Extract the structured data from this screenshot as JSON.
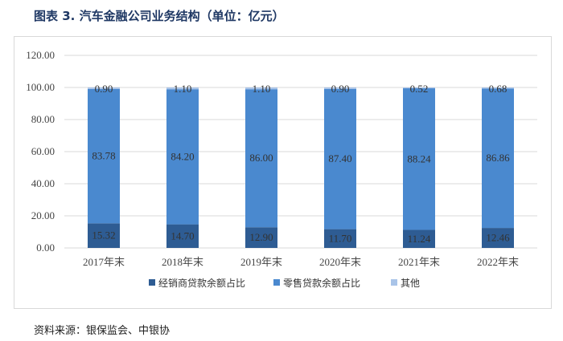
{
  "title": "图表 3. 汽车金融公司业务结构（单位：亿元）",
  "source": "资料来源：银保监会、中银协",
  "colors": {
    "s1": "#2e5c93",
    "s2": "#4a89cf",
    "s3": "#a9c4e8",
    "grid": "#d9d9d9"
  },
  "chart_data": {
    "type": "bar",
    "stacked": true,
    "categories": [
      "2017年末",
      "2018年末",
      "2019年末",
      "2020年末",
      "2021年末",
      "2022年末"
    ],
    "series": [
      {
        "name": "经销商贷款余额占比",
        "values": [
          15.32,
          14.7,
          12.9,
          11.7,
          11.24,
          12.46
        ]
      },
      {
        "name": "零售贷款余额占比",
        "values": [
          83.78,
          84.2,
          86.0,
          87.4,
          88.24,
          86.86
        ]
      },
      {
        "name": "其他",
        "values": [
          0.9,
          1.1,
          1.1,
          0.9,
          0.52,
          0.68
        ]
      }
    ],
    "yticks": [
      "0.00",
      "20.00",
      "40.00",
      "60.00",
      "80.00",
      "100.00",
      "120.00"
    ],
    "ylim": [
      0,
      120
    ],
    "grid": true,
    "legend_position": "bottom"
  }
}
